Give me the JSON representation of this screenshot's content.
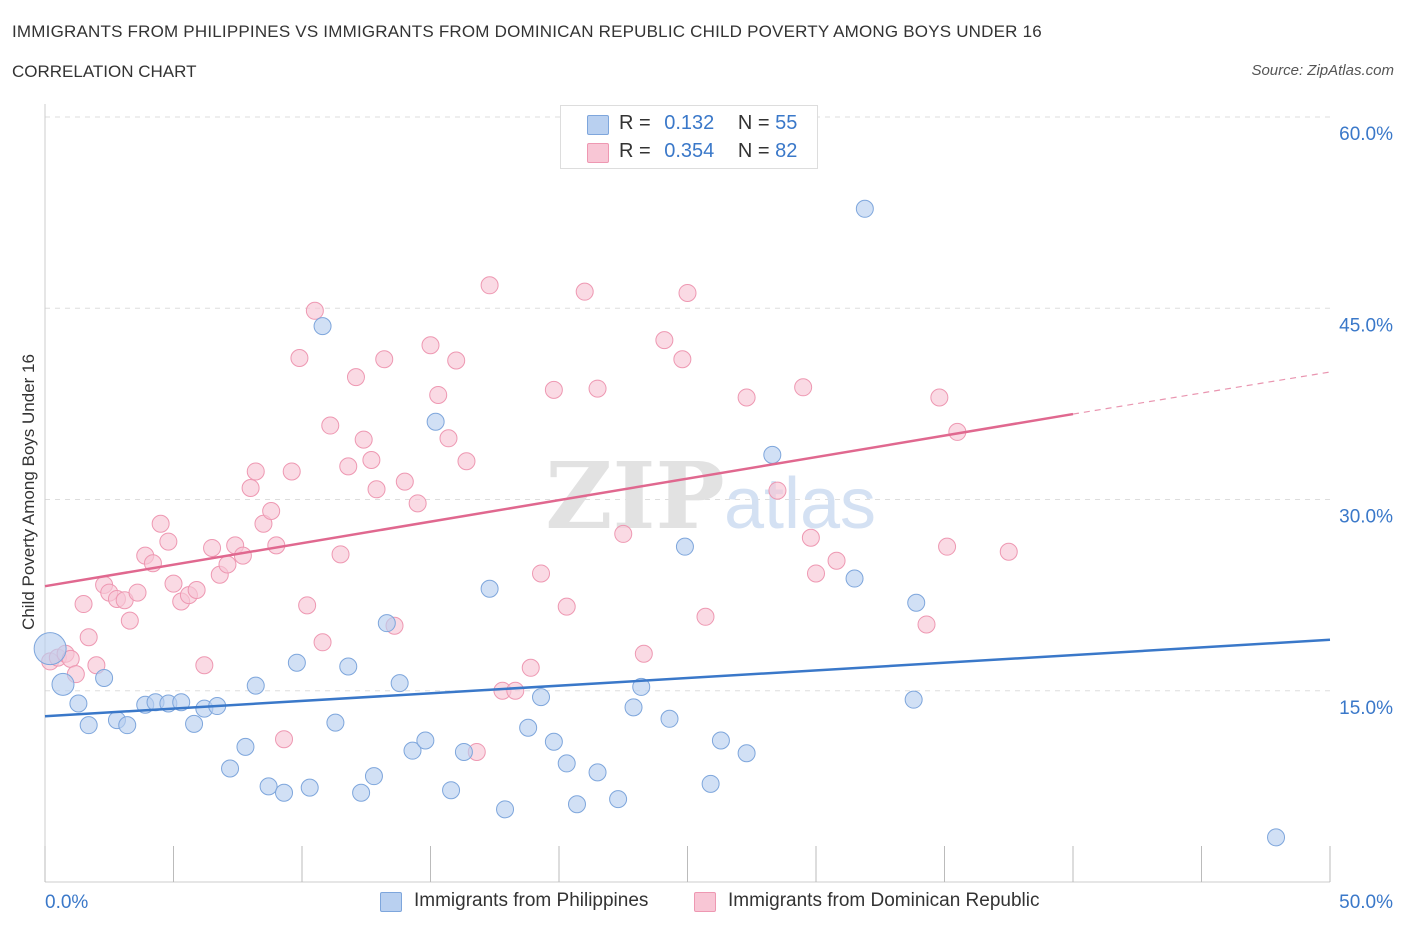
{
  "header": {
    "title": "IMMIGRANTS FROM PHILIPPINES VS IMMIGRANTS FROM DOMINICAN REPUBLIC CHILD POVERTY AMONG BOYS UNDER 16",
    "subtitle": "CORRELATION CHART",
    "source": "Source: ZipAtlas.com"
  },
  "legend": {
    "rows": [
      {
        "r_label": "R =",
        "r_value": "0.132",
        "n_label": "N =",
        "n_value": "55"
      },
      {
        "r_label": "R =",
        "r_value": "0.354",
        "n_label": "N =",
        "n_value": "82"
      }
    ],
    "series_labels": [
      "Immigrants from Philippines",
      "Immigrants from Dominican Republic"
    ]
  },
  "watermark": {
    "zip": "ZIP",
    "atlas": "atlas"
  },
  "colors": {
    "blue": "#3a78c9",
    "blue_fill": "#b9d0f0",
    "blue_stroke": "#7ea6dc",
    "pink": "#e0688f",
    "pink_fill": "#f8c6d5",
    "pink_stroke": "#ee98b2",
    "grid": "#dddddd",
    "tick_label": "#3a78c9"
  },
  "chart_data": {
    "type": "scatter",
    "xlabel": "",
    "ylabel": "Child Poverty Among Boys Under 16",
    "xlim": [
      0,
      50
    ],
    "ylim": [
      0,
      60
    ],
    "x_tick_labels": [
      "0.0%",
      "50.0%"
    ],
    "y_ticks": [
      15,
      30,
      45,
      60
    ],
    "y_tick_labels": [
      "15.0%",
      "30.0%",
      "45.0%",
      "60.0%"
    ],
    "grid": true,
    "legend_position": "top-center",
    "series": [
      {
        "name": "Immigrants from Philippines",
        "color": "#3a78c9",
        "trend": {
          "x": [
            0,
            50
          ],
          "y": [
            13.0,
            19.0
          ]
        },
        "points": [
          [
            0.2,
            18.3
          ],
          [
            0.7,
            15.5
          ],
          [
            1.3,
            14.0
          ],
          [
            1.7,
            12.3
          ],
          [
            2.3,
            16.0
          ],
          [
            2.8,
            12.7
          ],
          [
            3.2,
            12.3
          ],
          [
            3.9,
            13.9
          ],
          [
            4.3,
            14.1
          ],
          [
            4.8,
            14.0
          ],
          [
            5.3,
            14.1
          ],
          [
            5.8,
            12.4
          ],
          [
            6.2,
            13.6
          ],
          [
            6.7,
            13.8
          ],
          [
            7.2,
            8.9
          ],
          [
            7.8,
            10.6
          ],
          [
            8.2,
            15.4
          ],
          [
            8.7,
            7.5
          ],
          [
            9.3,
            7.0
          ],
          [
            9.8,
            17.2
          ],
          [
            10.3,
            7.4
          ],
          [
            10.8,
            43.6
          ],
          [
            11.3,
            12.5
          ],
          [
            11.8,
            16.9
          ],
          [
            12.3,
            7.0
          ],
          [
            12.8,
            8.3
          ],
          [
            13.3,
            20.3
          ],
          [
            13.8,
            15.6
          ],
          [
            14.3,
            10.3
          ],
          [
            14.8,
            11.1
          ],
          [
            15.2,
            36.1
          ],
          [
            15.8,
            7.2
          ],
          [
            16.3,
            10.2
          ],
          [
            17.3,
            23.0
          ],
          [
            17.9,
            5.7
          ],
          [
            18.8,
            12.1
          ],
          [
            19.3,
            14.5
          ],
          [
            19.8,
            11.0
          ],
          [
            20.3,
            9.3
          ],
          [
            20.7,
            6.1
          ],
          [
            21.5,
            8.6
          ],
          [
            22.3,
            6.5
          ],
          [
            22.9,
            13.7
          ],
          [
            23.2,
            15.3
          ],
          [
            24.3,
            12.8
          ],
          [
            24.9,
            26.3
          ],
          [
            25.9,
            7.7
          ],
          [
            26.3,
            11.1
          ],
          [
            27.3,
            10.1
          ],
          [
            28.3,
            33.5
          ],
          [
            31.5,
            23.8
          ],
          [
            31.9,
            52.8
          ],
          [
            33.8,
            14.3
          ],
          [
            33.9,
            21.9
          ],
          [
            47.9,
            3.5
          ]
        ]
      },
      {
        "name": "Immigrants from Dominican Republic",
        "color": "#e0688f",
        "trend": {
          "x": [
            0,
            40
          ],
          "y": [
            23.2,
            36.7
          ]
        },
        "trend_dashed": {
          "x": [
            40,
            50
          ],
          "y": [
            36.7,
            40.0
          ]
        },
        "points": [
          [
            0.2,
            17.3
          ],
          [
            0.5,
            17.6
          ],
          [
            0.8,
            17.9
          ],
          [
            1.0,
            17.5
          ],
          [
            1.2,
            16.3
          ],
          [
            1.5,
            21.8
          ],
          [
            1.7,
            19.2
          ],
          [
            2.0,
            17.0
          ],
          [
            2.3,
            23.3
          ],
          [
            2.5,
            22.7
          ],
          [
            2.8,
            22.2
          ],
          [
            3.1,
            22.1
          ],
          [
            3.3,
            20.5
          ],
          [
            3.6,
            22.7
          ],
          [
            3.9,
            25.6
          ],
          [
            4.2,
            25.0
          ],
          [
            4.5,
            28.1
          ],
          [
            4.8,
            26.7
          ],
          [
            5.0,
            23.4
          ],
          [
            5.3,
            22.0
          ],
          [
            5.6,
            22.5
          ],
          [
            5.9,
            22.9
          ],
          [
            6.2,
            17.0
          ],
          [
            6.5,
            26.2
          ],
          [
            6.8,
            24.1
          ],
          [
            7.1,
            24.9
          ],
          [
            7.4,
            26.4
          ],
          [
            7.7,
            25.6
          ],
          [
            8.0,
            30.9
          ],
          [
            8.2,
            32.2
          ],
          [
            8.5,
            28.1
          ],
          [
            8.8,
            29.1
          ],
          [
            9.0,
            26.4
          ],
          [
            9.3,
            11.2
          ],
          [
            9.6,
            32.2
          ],
          [
            9.9,
            41.1
          ],
          [
            10.2,
            21.7
          ],
          [
            10.5,
            44.8
          ],
          [
            10.8,
            18.8
          ],
          [
            11.1,
            35.8
          ],
          [
            11.5,
            25.7
          ],
          [
            11.8,
            32.6
          ],
          [
            12.1,
            39.6
          ],
          [
            12.4,
            34.7
          ],
          [
            12.7,
            33.1
          ],
          [
            12.9,
            30.8
          ],
          [
            13.2,
            41.0
          ],
          [
            13.6,
            20.1
          ],
          [
            14.0,
            31.4
          ],
          [
            14.5,
            29.7
          ],
          [
            15.0,
            42.1
          ],
          [
            15.3,
            38.2
          ],
          [
            15.7,
            34.8
          ],
          [
            16.0,
            40.9
          ],
          [
            16.4,
            33.0
          ],
          [
            16.8,
            10.2
          ],
          [
            17.3,
            46.8
          ],
          [
            17.8,
            15.0
          ],
          [
            18.3,
            15.0
          ],
          [
            18.9,
            16.8
          ],
          [
            19.3,
            24.2
          ],
          [
            19.8,
            38.6
          ],
          [
            20.3,
            21.6
          ],
          [
            21.0,
            46.3
          ],
          [
            21.5,
            38.7
          ],
          [
            22.5,
            27.3
          ],
          [
            23.3,
            17.9
          ],
          [
            24.1,
            42.5
          ],
          [
            24.8,
            41.0
          ],
          [
            25.0,
            46.2
          ],
          [
            25.7,
            20.8
          ],
          [
            27.3,
            38.0
          ],
          [
            28.5,
            30.7
          ],
          [
            29.5,
            38.8
          ],
          [
            29.8,
            27.0
          ],
          [
            30.0,
            24.2
          ],
          [
            30.8,
            25.2
          ],
          [
            34.3,
            20.2
          ],
          [
            34.8,
            38.0
          ],
          [
            35.1,
            26.3
          ],
          [
            35.5,
            35.3
          ],
          [
            37.5,
            25.9
          ]
        ]
      }
    ]
  }
}
